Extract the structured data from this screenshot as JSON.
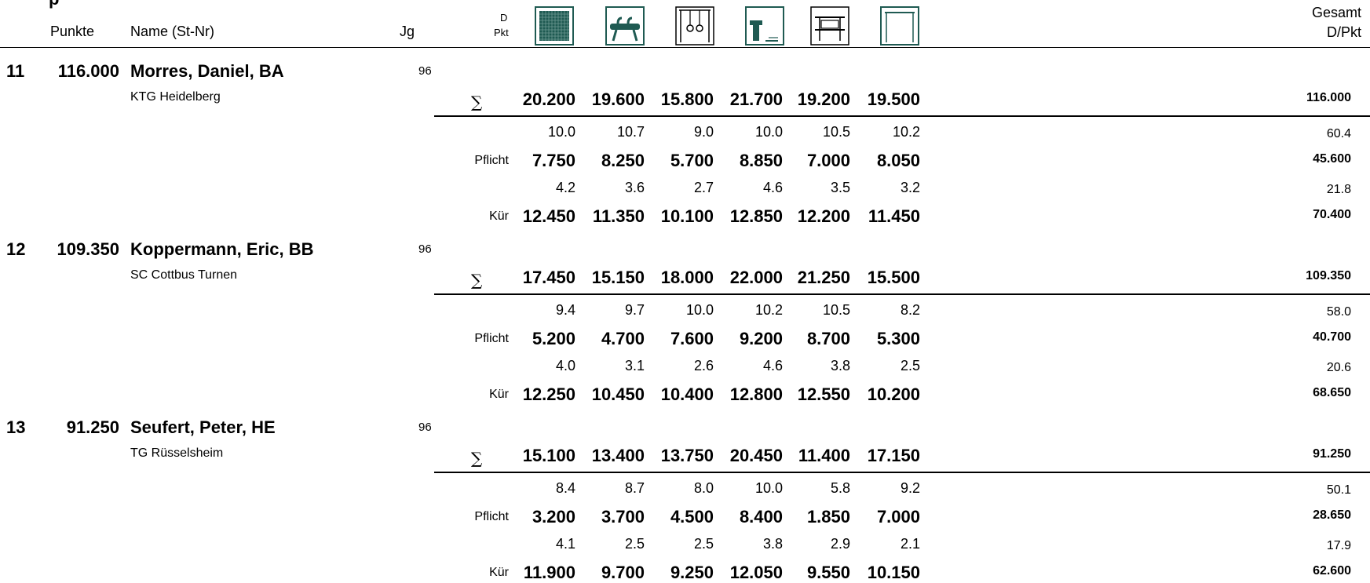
{
  "header": {
    "title_fragment": "p",
    "punkte": "Punkte",
    "name": "Name (St-Nr)",
    "jg": "Jg",
    "d": "D",
    "pkt": "Pkt",
    "gesamt": "Gesamt",
    "dpkt": "D/Pkt"
  },
  "apparatus_icons": [
    "floor-icon",
    "pommel-horse-icon",
    "rings-icon",
    "vault-icon",
    "parallel-bars-icon",
    "high-bar-icon"
  ],
  "icon_color": "#1f5a52",
  "labels": {
    "sum": "∑",
    "pflicht": "Pflicht",
    "kuer": "Kür"
  },
  "athletes": [
    {
      "rank": "11",
      "points": "116.000",
      "name": "Morres, Daniel, BA",
      "club": "KTG Heidelberg",
      "jg": "96",
      "sum": [
        "20.200",
        "19.600",
        "15.800",
        "21.700",
        "19.200",
        "19.500"
      ],
      "sum_total": "116.000",
      "pflicht_d": [
        "10.0",
        "10.7",
        "9.0",
        "10.0",
        "10.5",
        "10.2"
      ],
      "pflicht_d_total": "60.4",
      "pflicht": [
        "7.750",
        "8.250",
        "5.700",
        "8.850",
        "7.000",
        "8.050"
      ],
      "pflicht_total": "45.600",
      "kuer_d": [
        "4.2",
        "3.6",
        "2.7",
        "4.6",
        "3.5",
        "3.2"
      ],
      "kuer_d_total": "21.8",
      "kuer": [
        "12.450",
        "11.350",
        "10.100",
        "12.850",
        "12.200",
        "11.450"
      ],
      "kuer_total": "70.400"
    },
    {
      "rank": "12",
      "points": "109.350",
      "name": "Koppermann, Eric, BB",
      "club": "SC Cottbus Turnen",
      "jg": "96",
      "sum": [
        "17.450",
        "15.150",
        "18.000",
        "22.000",
        "21.250",
        "15.500"
      ],
      "sum_total": "109.350",
      "pflicht_d": [
        "9.4",
        "9.7",
        "10.0",
        "10.2",
        "10.5",
        "8.2"
      ],
      "pflicht_d_total": "58.0",
      "pflicht": [
        "5.200",
        "4.700",
        "7.600",
        "9.200",
        "8.700",
        "5.300"
      ],
      "pflicht_total": "40.700",
      "kuer_d": [
        "4.0",
        "3.1",
        "2.6",
        "4.6",
        "3.8",
        "2.5"
      ],
      "kuer_d_total": "20.6",
      "kuer": [
        "12.250",
        "10.450",
        "10.400",
        "12.800",
        "12.550",
        "10.200"
      ],
      "kuer_total": "68.650"
    },
    {
      "rank": "13",
      "points": "91.250",
      "name": "Seufert, Peter, HE",
      "club": "TG Rüsselsheim",
      "jg": "96",
      "sum": [
        "15.100",
        "13.400",
        "13.750",
        "20.450",
        "11.400",
        "17.150"
      ],
      "sum_total": "91.250",
      "pflicht_d": [
        "8.4",
        "8.7",
        "8.0",
        "10.0",
        "5.8",
        "9.2"
      ],
      "pflicht_d_total": "50.1",
      "pflicht": [
        "3.200",
        "3.700",
        "4.500",
        "8.400",
        "1.850",
        "7.000"
      ],
      "pflicht_total": "28.650",
      "kuer_d": [
        "4.1",
        "2.5",
        "2.5",
        "3.8",
        "2.9",
        "2.1"
      ],
      "kuer_d_total": "17.9",
      "kuer": [
        "11.900",
        "9.700",
        "9.250",
        "12.050",
        "9.550",
        "10.150"
      ],
      "kuer_total": "62.600"
    }
  ]
}
